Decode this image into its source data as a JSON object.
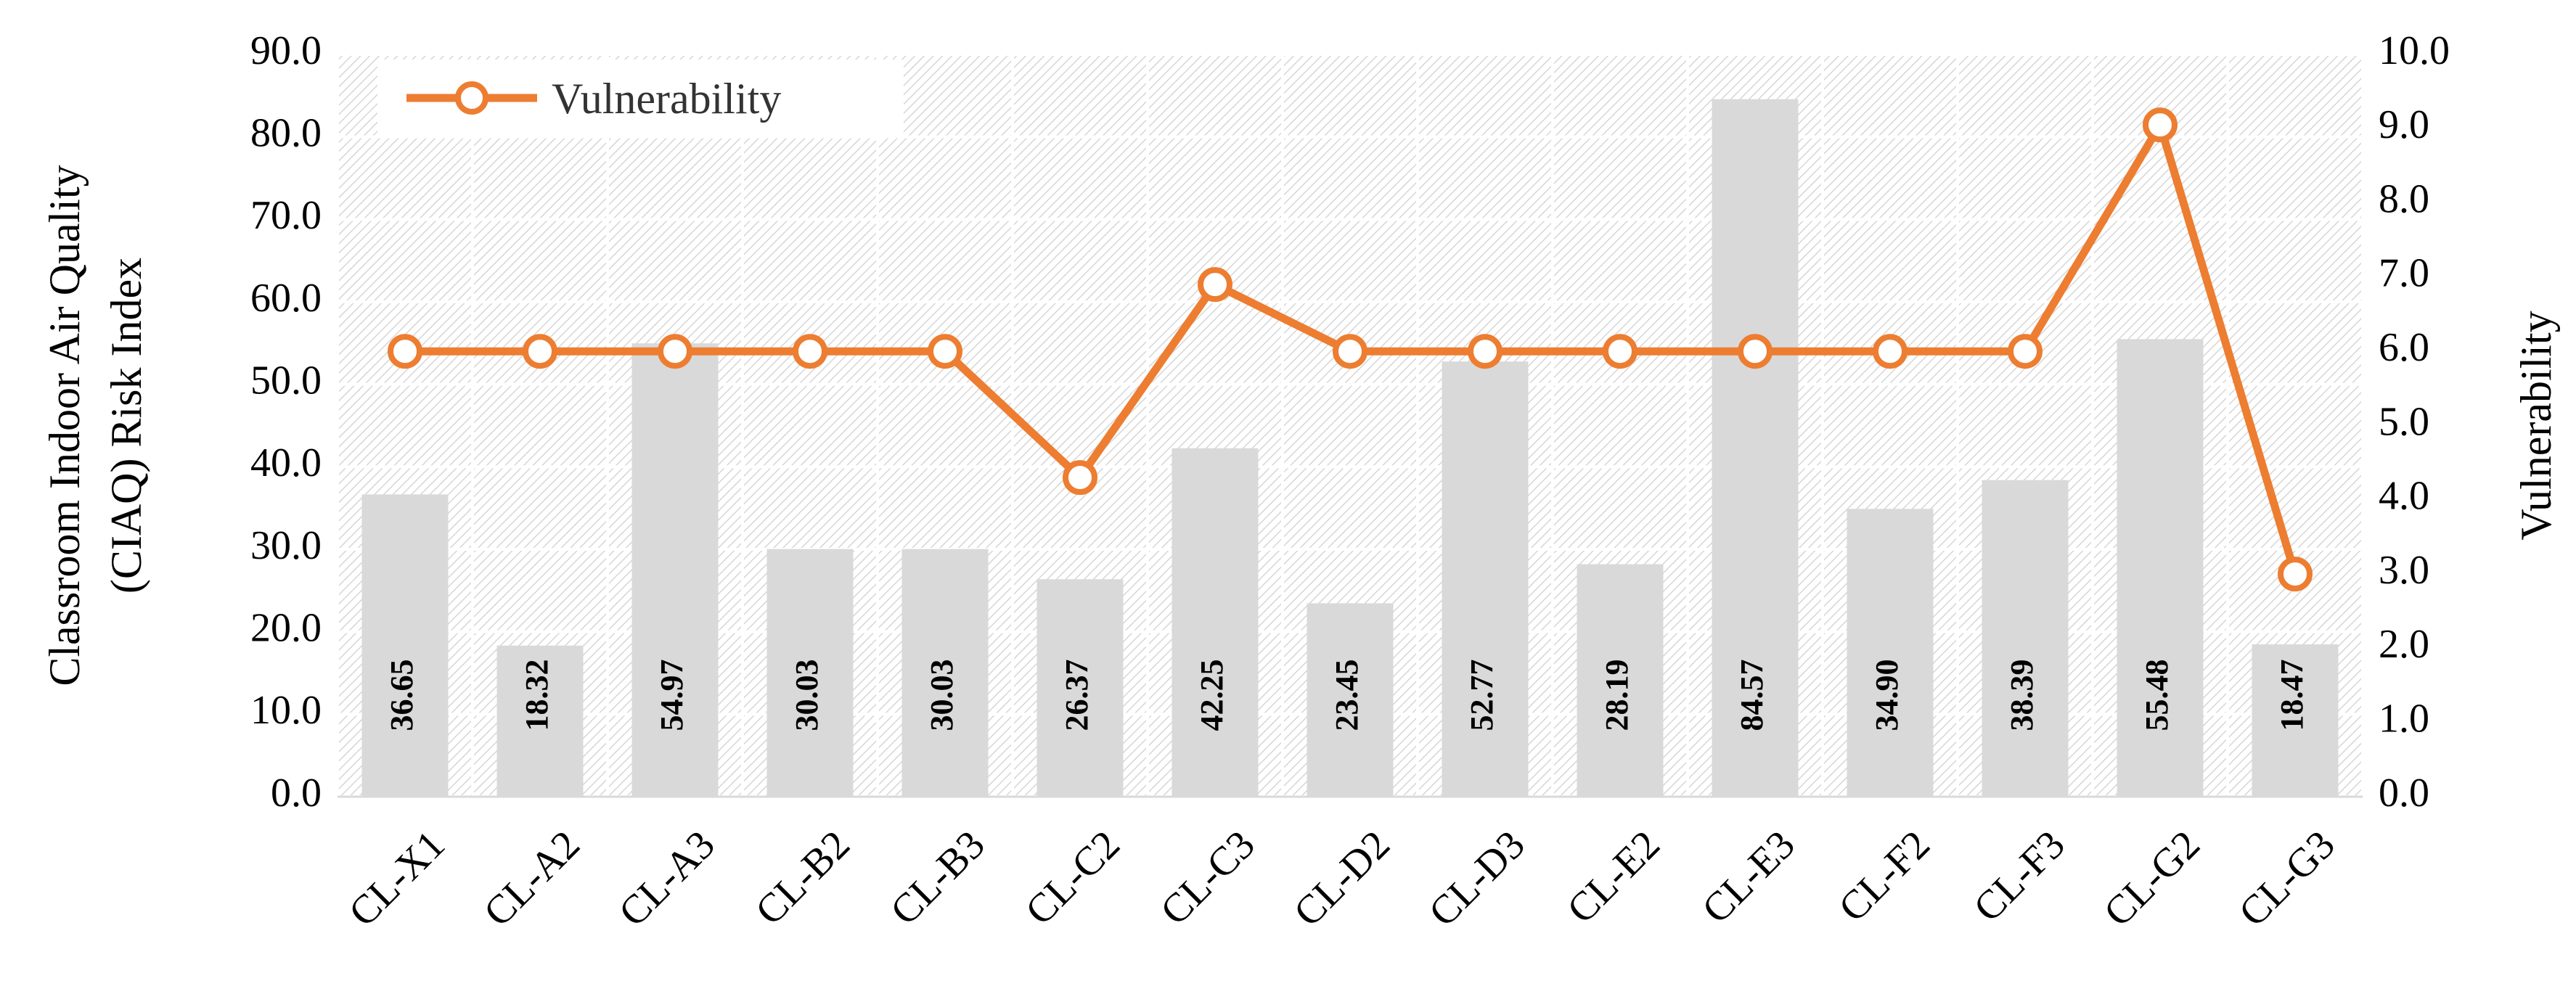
{
  "chart_data": {
    "type": "bar",
    "categories": [
      "CL-X1",
      "CL-A2",
      "CL-A3",
      "CL-B2",
      "CL-B3",
      "CL-C2",
      "CL-C3",
      "CL-D2",
      "CL-D3",
      "CL-E2",
      "CL-E3",
      "CL-F2",
      "CL-F3",
      "CL-G2",
      "CL-G3"
    ],
    "series": [
      {
        "type": "bar",
        "axis": "left",
        "values": [
          36.65,
          18.32,
          54.97,
          30.03,
          30.03,
          26.37,
          42.25,
          23.45,
          52.77,
          28.19,
          84.57,
          34.9,
          38.39,
          55.48,
          18.47
        ],
        "labels": [
          "36.65",
          "18.32",
          "54.97",
          "30.03",
          "30.03",
          "26.37",
          "42.25",
          "23.45",
          "52.77",
          "28.19",
          "84.57",
          "34.90",
          "38.39",
          "55.48",
          "18.47"
        ],
        "color": "#d9d9d9"
      },
      {
        "type": "line",
        "name": "Vulnerability",
        "axis": "right",
        "values": [
          6.0,
          6.0,
          6.0,
          6.0,
          6.0,
          4.3,
          6.9,
          6.0,
          6.0,
          6.0,
          6.0,
          6.0,
          6.0,
          9.05,
          3.0
        ],
        "color": "#ed7d31"
      }
    ],
    "ylabel_left_lines": [
      "Classroom Indoor Air Quality",
      "(CIAQ) Risk Index"
    ],
    "ylabel_right": "Vulnerability",
    "ylim_left": [
      0,
      90
    ],
    "ylim_right": [
      0,
      10
    ],
    "yticks_left": [
      "0.0",
      "10.0",
      "20.0",
      "30.0",
      "40.0",
      "50.0",
      "60.0",
      "70.0",
      "80.0",
      "90.0"
    ],
    "yticks_right": [
      "0.0",
      "1.0",
      "2.0",
      "3.0",
      "4.0",
      "5.0",
      "6.0",
      "7.0",
      "8.0",
      "9.0",
      "10.0"
    ],
    "legend": {
      "label": "Vulnerability",
      "position": "top-left"
    },
    "grid": true,
    "plot_background": "hatched"
  }
}
